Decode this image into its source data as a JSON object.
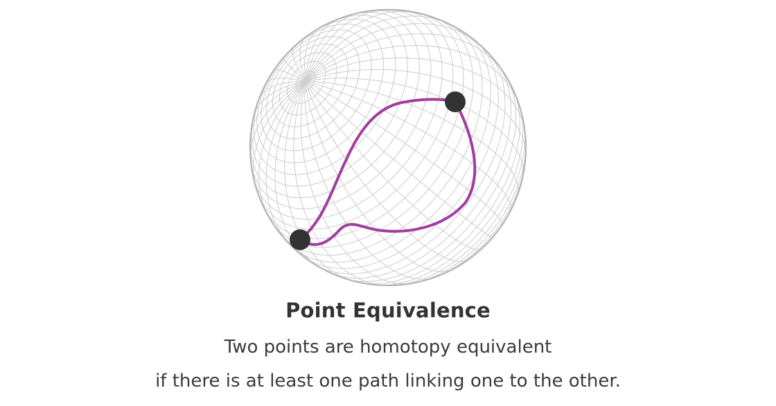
{
  "diagram": {
    "title": "Point Equivalence",
    "caption_line_1": "Two points are homotopy equivalent",
    "caption_line_2": "if there is at least one path linking one to the other.",
    "colors": {
      "grid": "#cfcfcf",
      "sphere_outline": "#b4b4b4",
      "path": "#a23d9e",
      "points": "#333333",
      "text": "#3a3a3a"
    }
  }
}
